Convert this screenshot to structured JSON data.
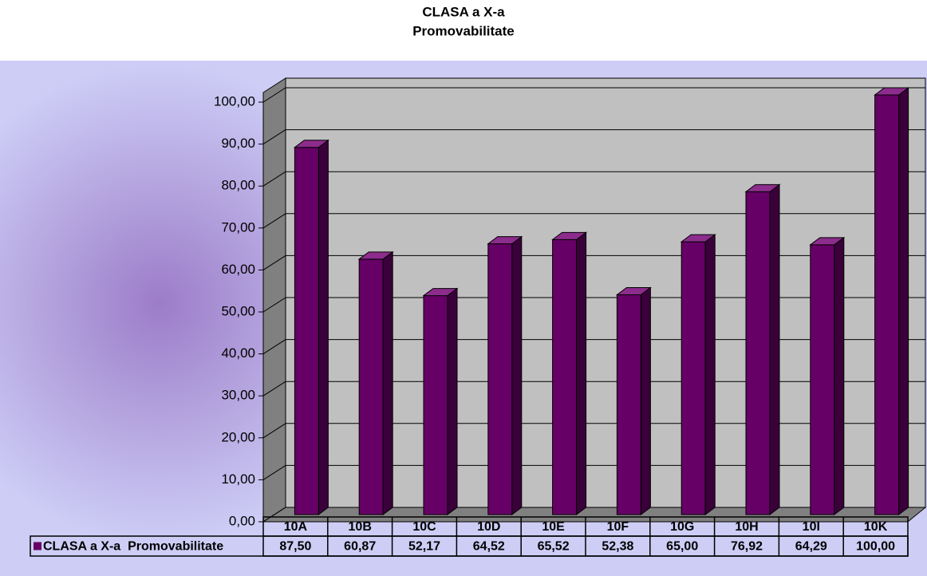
{
  "chart_data": {
    "type": "bar3d",
    "title": "CLASA a X-a",
    "subtitle": "Promovabilitate",
    "categories": [
      "10A",
      "10B",
      "10C",
      "10D",
      "10E",
      "10F",
      "10G",
      "10H",
      "10I",
      "10K"
    ],
    "series": [
      {
        "name": "CLASA a X-a  Promovabilitate",
        "color": "#660066",
        "values": [
          87.5,
          60.87,
          52.17,
          64.52,
          65.52,
          52.38,
          65,
          76.92,
          64.29,
          100
        ],
        "value_labels": [
          "87,50",
          "60,87",
          "52,17",
          "64,52",
          "65,52",
          "52,38",
          "65,00",
          "76,92",
          "64,29",
          "100,00"
        ]
      }
    ],
    "ylim": [
      0,
      100
    ],
    "yticks": [
      {
        "value": 0,
        "label": "0,00"
      },
      {
        "value": 10,
        "label": "10,00"
      },
      {
        "value": 20,
        "label": "20,00"
      },
      {
        "value": 30,
        "label": "30,00"
      },
      {
        "value": 40,
        "label": "40,00"
      },
      {
        "value": 50,
        "label": "50,00"
      },
      {
        "value": 60,
        "label": "60,00"
      },
      {
        "value": 70,
        "label": "70,00"
      },
      {
        "value": 80,
        "label": "80,00"
      },
      {
        "value": 90,
        "label": "90,00"
      },
      {
        "value": 100,
        "label": "100,00"
      }
    ],
    "grid": true,
    "data_table": true
  }
}
